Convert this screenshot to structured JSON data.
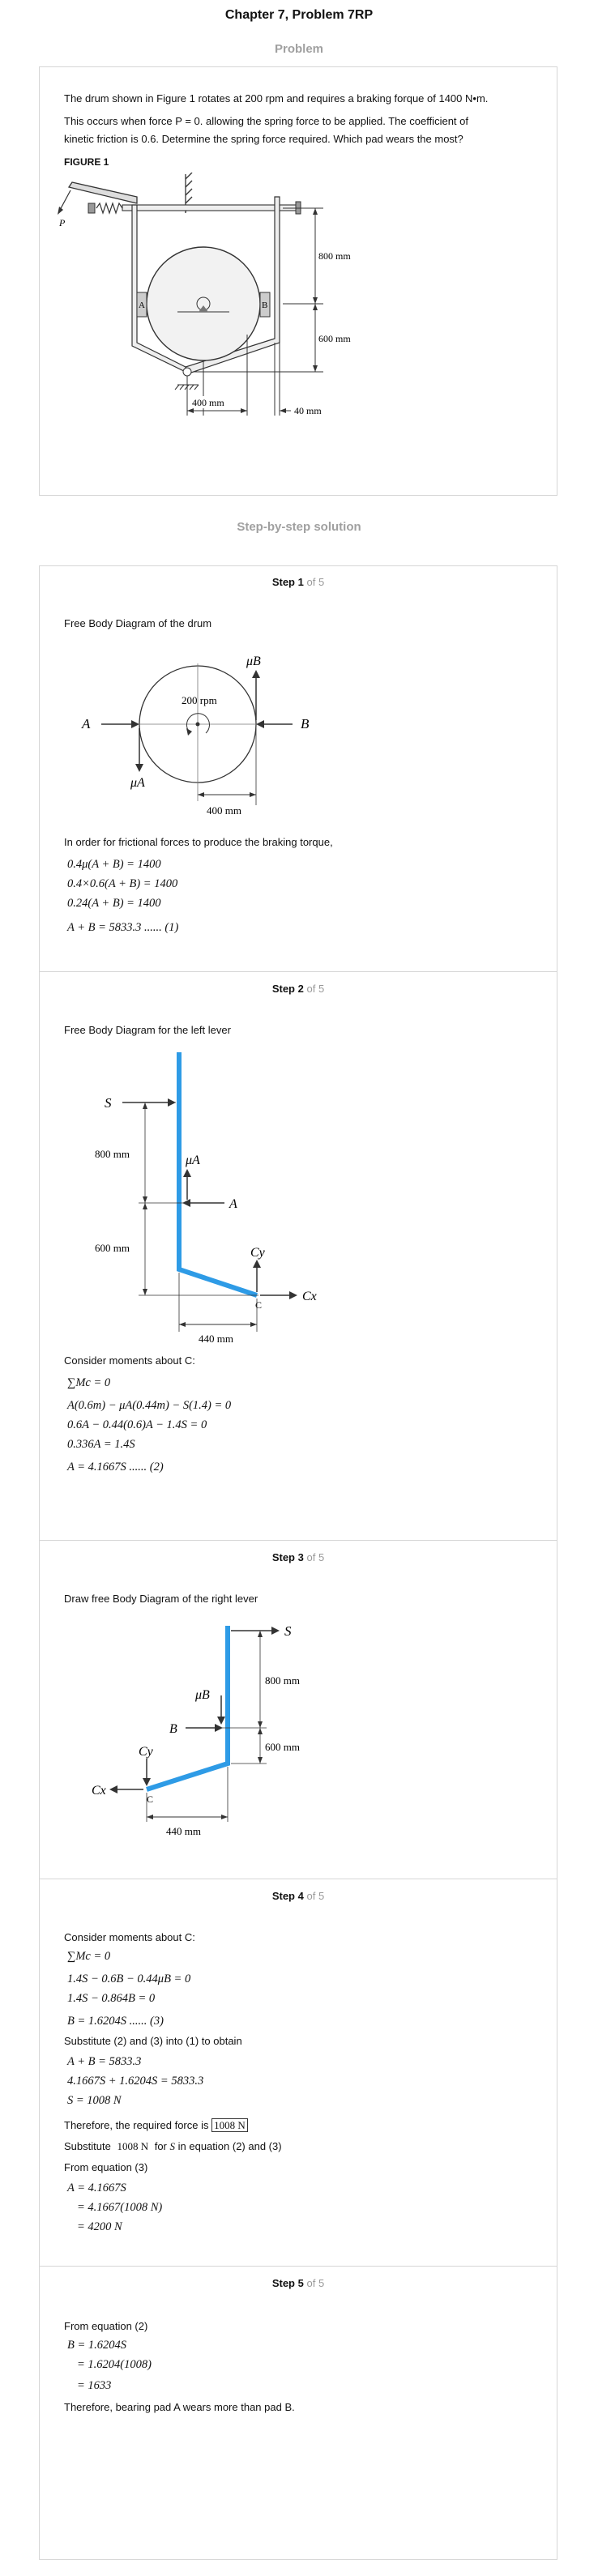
{
  "page": {
    "title": "Chapter 7, Problem 7RP",
    "problem_label": "Problem",
    "solution_label": "Step-by-step solution"
  },
  "problem": {
    "line1": "The drum shown in Figure 1 rotates at 200 rpm and requires a braking forque of 1400 N•m.",
    "line2": "This occurs when force P = 0. allowing the spring force to be applied. The coefficient of",
    "line3": "kinetic friction is 0.6. Determine the spring force required. Which pad wears the most?",
    "figure_label": "FIGURE 1",
    "fig": {
      "p": "P",
      "a": "A",
      "b": "B",
      "d800": "800 mm",
      "d600": "600 mm",
      "d400": "400 mm",
      "d40": "40 mm"
    }
  },
  "steps": [
    {
      "step_word": "Step",
      "num": "1",
      "of": "of 5",
      "caption": "Free Body Diagram of the drum",
      "fig": {
        "mub": "μB",
        "a": "A",
        "b": "B",
        "mua": "μA",
        "rpm": "200 rpm",
        "d400": "400 mm"
      },
      "text": "In order for frictional forces to produce the braking torque,",
      "eq1": "0.4μ(A + B) = 1400",
      "eq2": "0.4×0.6(A + B) = 1400",
      "eq3": "0.24(A + B) = 1400",
      "eq4": "A + B = 5833.3 ...... (1)"
    },
    {
      "step_word": "Step",
      "num": "2",
      "of": "of 5",
      "caption": "Free Body Diagram for the left lever",
      "fig": {
        "s": "S",
        "d800": "800 mm",
        "mua": "μA",
        "a": "A",
        "d600": "600 mm",
        "cy": "Cy",
        "cx": "Cx",
        "c": "C",
        "d440": "440 mm"
      },
      "text": "Consider moments about C:",
      "eq1": "∑Mc = 0",
      "eq2": "A(0.6m) − μA(0.44m) − S(1.4) = 0",
      "eq3": "0.6A − 0.44(0.6)A − 1.4S = 0",
      "eq4": "0.336A = 1.4S",
      "eq5": "A = 4.1667S ...... (2)"
    },
    {
      "step_word": "Step",
      "num": "3",
      "of": "of 5",
      "caption": "Draw free Body Diagram of the right lever",
      "fig": {
        "s": "S",
        "d800": "800 mm",
        "mub": "μB",
        "b": "B",
        "d600": "600 mm",
        "cy": "Cy",
        "cx": "Cx",
        "c": "C",
        "d440": "440 mm"
      }
    },
    {
      "step_word": "Step",
      "num": "4",
      "of": "of 5",
      "text1": "Consider moments about C:",
      "eq1": "∑Mc = 0",
      "eq2": "1.4S − 0.6B − 0.44μB = 0",
      "eq3": "1.4S − 0.864B = 0",
      "eq4": "B = 1.6204S ...... (3)",
      "text2": "Substitute (2) and (3) into (1) to obtain",
      "eq5": "A + B = 5833.3",
      "eq6": "4.1667S + 1.6204S = 5833.3",
      "eq7": "S = 1008 N",
      "text3": "Therefore, the required force is",
      "answer": "1008 N",
      "text4a": "Substitute",
      "text4b": "1008 N",
      "text4c": "for",
      "text4d": "S",
      "text4e": "in equation (2) and (3)",
      "text5": "From equation (3)",
      "eq8": "A = 4.1667S",
      "eq9": "= 4.1667(1008 N)",
      "eq10": "= 4200 N"
    },
    {
      "step_word": "Step",
      "num": "5",
      "of": "of 5",
      "text1": "From equation (2)",
      "eq1": "B = 1.6204S",
      "eq2": "= 1.6204(1008)",
      "eq3": "= 1633",
      "text2": "Therefore, bearing pad A wears more than pad B."
    }
  ],
  "colors": {
    "lever": "#2e9be6",
    "muted": "#a0a0a0",
    "border": "#d6d6d6"
  }
}
